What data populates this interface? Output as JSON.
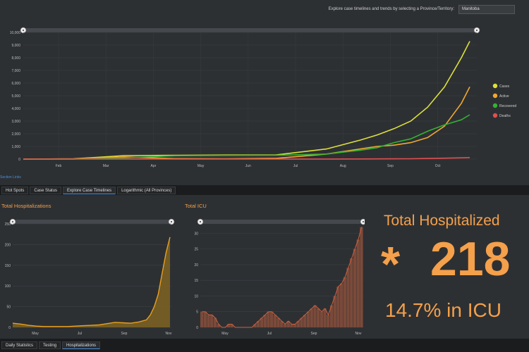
{
  "header": {
    "prompt": "Explore case timelines and trends by selecting a Province/Territory:",
    "province_selected": "Manitoba"
  },
  "section_link": "Section Links",
  "tabs_main": [
    "Hot Spots",
    "Case Status",
    "Explore Case Timelines",
    "Logarithmic (All Provinces)"
  ],
  "tabs_bottom": [
    "Daily Statistics",
    "Testing",
    "Hospitalizations"
  ],
  "colors": {
    "cases": "#dde03a",
    "active": "#f0a830",
    "recovered": "#33b233",
    "deaths": "#e05050",
    "hosp": "#e8a020",
    "icu": "#d06040",
    "accent": "#f5a04a"
  },
  "chart_data": [
    {
      "type": "line",
      "title": "",
      "x_ticks": [
        "Feb",
        "Mar",
        "Apr",
        "May",
        "Jun",
        "Jul",
        "Aug",
        "Sep",
        "Oct"
      ],
      "y_ticks": [
        "0",
        "1,000",
        "2,000",
        "3,000",
        "4,000",
        "5,000",
        "6,000",
        "7,000",
        "8,000",
        "9,000",
        "10,000"
      ],
      "ylim": [
        0,
        10000
      ],
      "legend": [
        "Cases",
        "Active",
        "Recovered",
        "Deaths"
      ],
      "x": [
        0,
        30,
        60,
        90,
        120,
        150,
        180,
        200,
        210,
        220,
        230,
        240,
        250,
        260,
        265
      ],
      "series": [
        {
          "name": "Cases",
          "values": [
            0,
            20,
            280,
            300,
            320,
            330,
            800,
            1500,
            1900,
            2400,
            3000,
            4100,
            5700,
            8000,
            9300
          ]
        },
        {
          "name": "Active",
          "values": [
            0,
            10,
            180,
            40,
            30,
            60,
            400,
            800,
            1000,
            1100,
            1300,
            1700,
            2600,
            4400,
            5700
          ]
        },
        {
          "name": "Recovered",
          "values": [
            0,
            5,
            100,
            260,
            290,
            300,
            400,
            700,
            900,
            1300,
            1600,
            2200,
            2700,
            3100,
            3500
          ]
        },
        {
          "name": "Deaths",
          "values": [
            0,
            0,
            5,
            7,
            7,
            7,
            8,
            10,
            14,
            20,
            30,
            50,
            70,
            100,
            120
          ]
        }
      ]
    },
    {
      "type": "area",
      "title": "Total Hospitalizations",
      "x_ticks": [
        "May",
        "Jul",
        "Sep",
        "Nov"
      ],
      "y_ticks": [
        "0",
        "50",
        "100",
        "150",
        "200",
        "250"
      ],
      "ylim": [
        0,
        250
      ],
      "x": [
        0,
        10,
        20,
        30,
        40,
        50,
        60,
        70,
        80,
        90,
        100,
        110,
        120,
        130,
        140,
        150,
        160,
        170,
        175,
        180,
        185,
        190,
        195,
        200
      ],
      "values": [
        10,
        8,
        5,
        3,
        2,
        2,
        2,
        2,
        3,
        4,
        5,
        6,
        9,
        12,
        11,
        10,
        13,
        18,
        30,
        50,
        80,
        130,
        180,
        218
      ]
    },
    {
      "type": "bar",
      "title": "Total ICU",
      "x_ticks": [
        "May",
        "Jul",
        "Sep",
        "Nov"
      ],
      "y_ticks": [
        "0",
        "5",
        "10",
        "15",
        "20",
        "25",
        "30"
      ],
      "ylim": [
        0,
        30
      ],
      "values": [
        5,
        5,
        4,
        4,
        3,
        1,
        0,
        0,
        1,
        1,
        0,
        0,
        0,
        0,
        0,
        0,
        1,
        2,
        3,
        4,
        5,
        5,
        4,
        3,
        2,
        1,
        2,
        1,
        1,
        2,
        3,
        4,
        5,
        6,
        7,
        6,
        5,
        6,
        4,
        7,
        10,
        13,
        14,
        16,
        19,
        22,
        25,
        28,
        32
      ]
    }
  ],
  "kpi": {
    "title": "Total Hospitalized",
    "value": "218",
    "icu_line": "14.7% in ICU"
  }
}
